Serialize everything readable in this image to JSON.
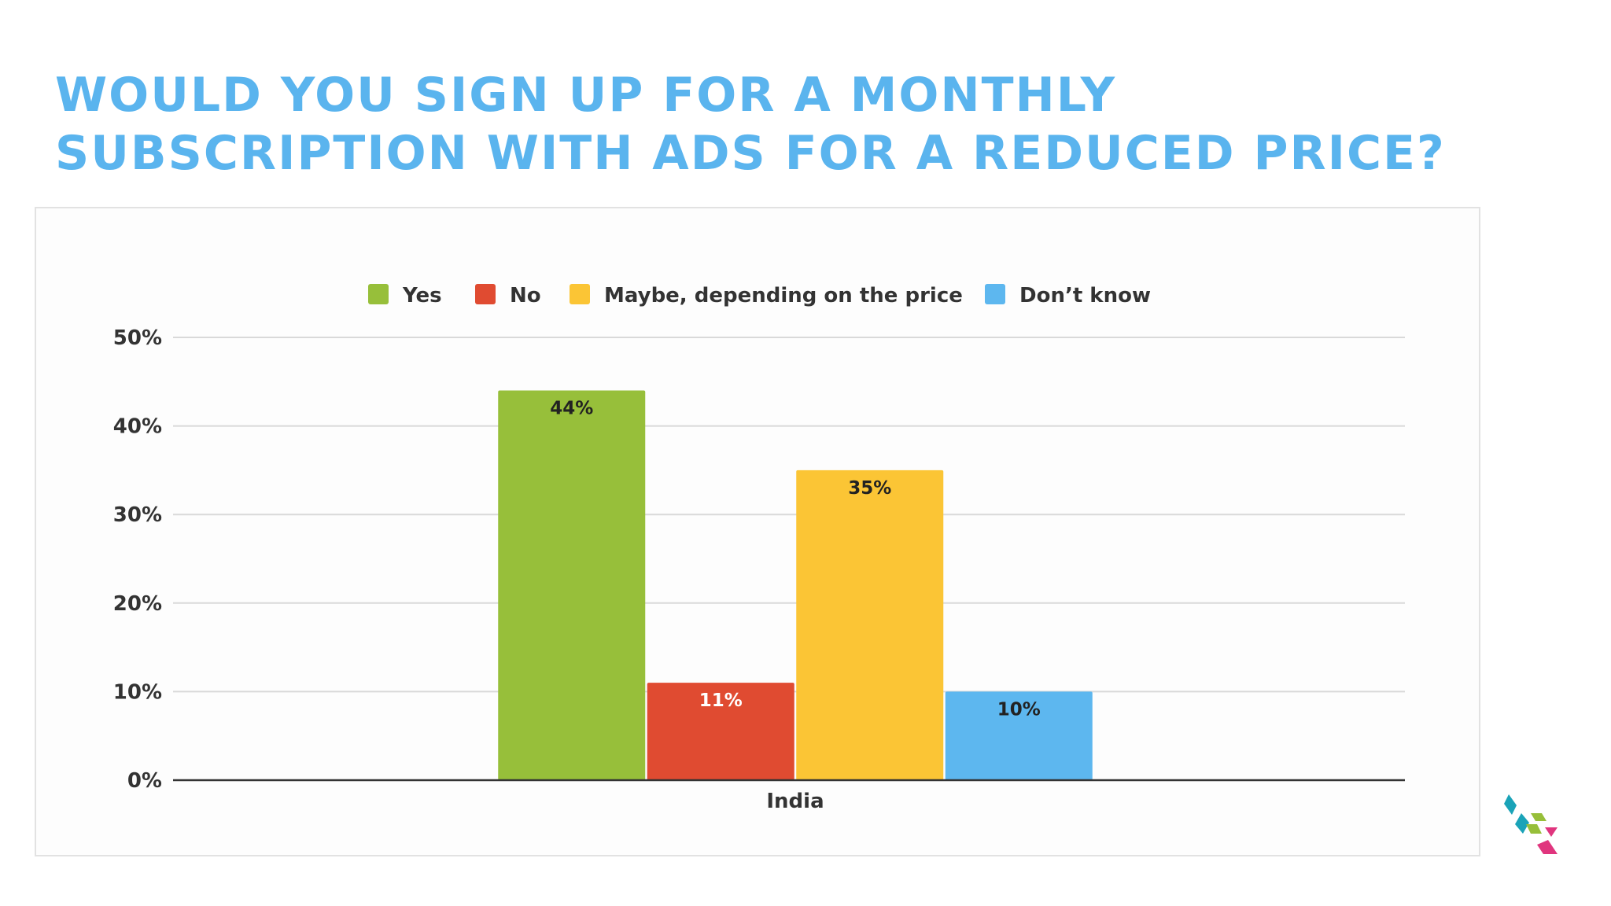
{
  "title_lines": [
    "WOULD YOU SIGN UP FOR A MONTHLY",
    "SUBSCRIPTION WITH ADS FOR A REDUCED PRICE?"
  ],
  "chart_data": {
    "type": "bar",
    "categories": [
      "India"
    ],
    "series": [
      {
        "name": "Yes",
        "values": [
          44
        ],
        "label": "44%",
        "color": "#97bf3a"
      },
      {
        "name": "No",
        "values": [
          11
        ],
        "label": "11%",
        "color": "#e04b31"
      },
      {
        "name": "Maybe, depending on the price",
        "values": [
          35
        ],
        "label": "35%",
        "color": "#fbc535"
      },
      {
        "name": "Don’t know",
        "values": [
          10
        ],
        "label": "10%",
        "color": "#5db7ef"
      }
    ],
    "y_ticks": [
      "0%",
      "10%",
      "20%",
      "30%",
      "40%",
      "50%"
    ],
    "ylim": [
      0,
      50
    ],
    "grid": true,
    "legend_position": "top"
  },
  "logo": {
    "icon": "stacked-cubes-logo-icon",
    "colors": [
      "#1aa3b8",
      "#97bf3a",
      "#e0357e"
    ]
  }
}
